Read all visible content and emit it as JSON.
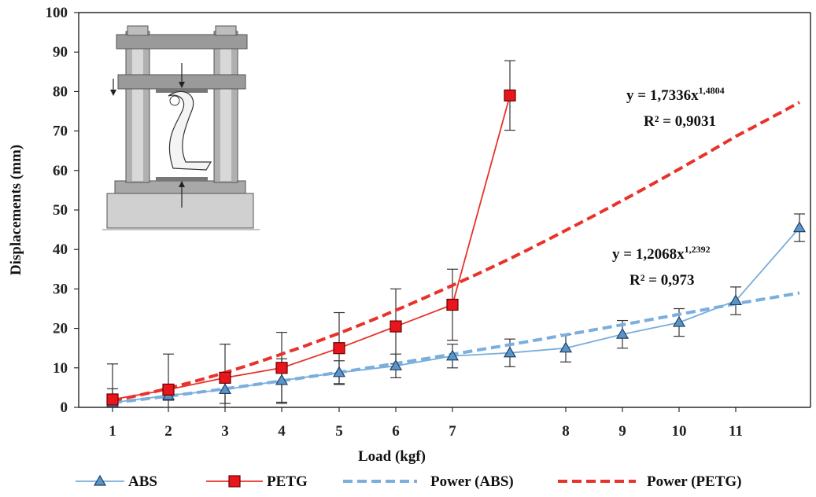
{
  "chart_data": {
    "type": "line",
    "xlabel": "Load  (kgf)",
    "ylabel": "Displacements (mm)",
    "x_tick_labels": [
      "1",
      "2",
      "3",
      "4",
      "5",
      "6",
      "7",
      "8",
      "9",
      "10",
      "11"
    ],
    "y_ticks": [
      0,
      10,
      20,
      30,
      40,
      50,
      60,
      70,
      80,
      90,
      100
    ],
    "ylim": [
      0,
      100
    ],
    "grid": false,
    "legend_position": "bottom",
    "series": [
      {
        "name": "ABS",
        "color": "#7aaedc",
        "marker": "triangle",
        "x": [
          1,
          2,
          3,
          4,
          5,
          6,
          7,
          8,
          9,
          10,
          11,
          12,
          13
        ],
        "y": [
          1.2,
          3.0,
          4.5,
          6.8,
          8.8,
          10.5,
          13.0,
          13.8,
          15.0,
          18.5,
          21.5,
          27.0,
          45.5
        ],
        "err": [
          3.5,
          1.2,
          3.5,
          5.5,
          3.0,
          3.0,
          3.0,
          3.5,
          3.5,
          3.5,
          3.5,
          3.5,
          3.5
        ]
      },
      {
        "name": "PETG",
        "color": "#e8322a",
        "marker": "square",
        "x": [
          1,
          2,
          3,
          4,
          5,
          6,
          7,
          8
        ],
        "y": [
          2.0,
          4.5,
          7.5,
          10.0,
          15.0,
          20.5,
          26.0,
          79.0
        ],
        "err": [
          9.0,
          9.0,
          8.5,
          9.0,
          9.0,
          9.5,
          9.0,
          8.8
        ]
      },
      {
        "name": "Power (ABS)",
        "color": "#7aaedc",
        "style": "dashed",
        "fit": {
          "a": 1.2068,
          "b": 1.2392
        }
      },
      {
        "name": "Power (PETG)",
        "color": "#e8322a",
        "style": "dashed",
        "fit": {
          "a": 1.7336,
          "b": 1.4804
        }
      }
    ],
    "annotations": [
      {
        "label": "petg-equation",
        "base": "y = 1,7336x",
        "sup": "1,4804",
        "r2": "R² = 0,9031"
      },
      {
        "label": "abs-equation",
        "base": "y = 1,2068x",
        "sup": "1,2392",
        "r2": "R² = 0,973"
      }
    ]
  }
}
